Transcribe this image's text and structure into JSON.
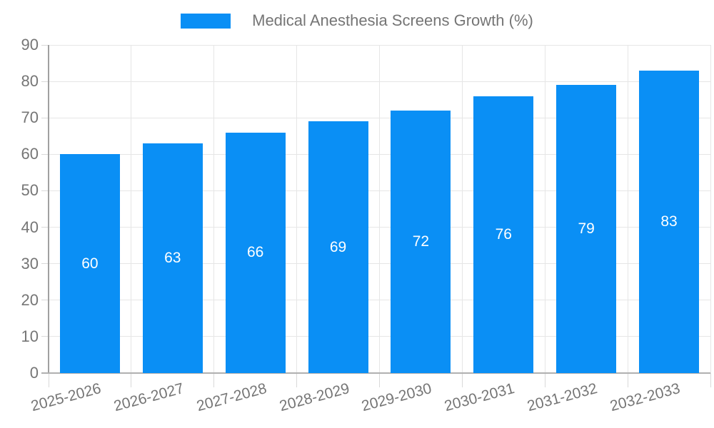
{
  "legend": {
    "label": "Medical Anesthesia Screens Growth (%)"
  },
  "chart_data": {
    "type": "bar",
    "title": "Medical Anesthesia Screens Growth (%)",
    "categories": [
      "2025-2026",
      "2026-2027",
      "2027-2028",
      "2028-2029",
      "2029-2030",
      "2030-2031",
      "2031-2032",
      "2032-2033"
    ],
    "values": [
      60,
      63,
      66,
      69,
      72,
      76,
      79,
      83
    ],
    "xlabel": "",
    "ylabel": "",
    "ylim": [
      0,
      90
    ],
    "yticks": [
      0,
      10,
      20,
      30,
      40,
      50,
      60,
      70,
      80,
      90
    ],
    "grid": true,
    "legend_position": "top",
    "bar_color": "#0a8ff5",
    "bar_label_color": "#ffffff",
    "axis_text_color": "#757575",
    "gridline_color": "#e6e6e6",
    "axis_line_color": "#a0a0a0"
  }
}
